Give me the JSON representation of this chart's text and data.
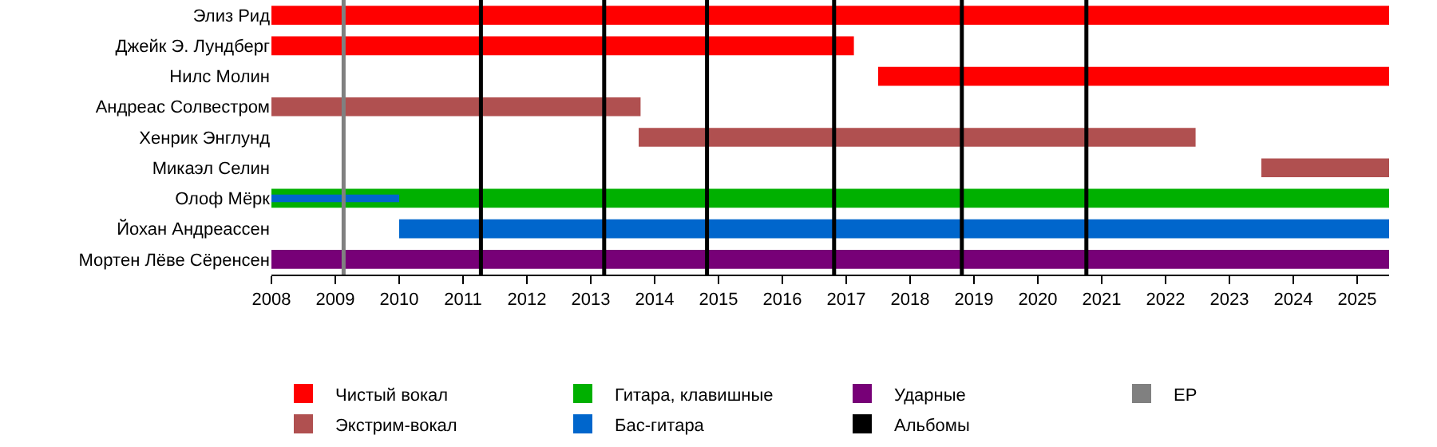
{
  "chart_data": {
    "type": "bar",
    "orientation": "horizontal",
    "categories": [
      "Элиз Рид",
      "Джейк Э. Лундберг",
      "Нилс Молин",
      "Андреас Солвестром",
      "Хенрик Энглунд",
      "Микаэл Селин",
      "Олоф Мёрк",
      "Йохан Андреассен",
      "Мортен Лёве Сёренсен"
    ],
    "series": [
      {
        "name": "Чистый вокал",
        "color": "#ff0000",
        "base": [
          2008,
          2008,
          2017.5,
          null,
          null,
          null,
          null,
          null,
          null
        ],
        "values": [
          17.5,
          9.12,
          8,
          null,
          null,
          null,
          null,
          null,
          null
        ]
      },
      {
        "name": "Экстрим-вокал",
        "color": "#b05050",
        "base": [
          null,
          null,
          null,
          2008,
          2013.75,
          2023.5,
          null,
          null,
          null
        ],
        "values": [
          null,
          null,
          null,
          5.78,
          8.72,
          2,
          null,
          null,
          null
        ]
      },
      {
        "name": "Гитара, клавишные",
        "color": "#00b000",
        "base": [
          null,
          null,
          null,
          null,
          null,
          null,
          2008,
          null,
          null
        ],
        "values": [
          null,
          null,
          null,
          null,
          null,
          null,
          17.5,
          null,
          null
        ]
      },
      {
        "name": "Бас-гитара",
        "color": "#0066cc",
        "base": [
          null,
          null,
          null,
          null,
          null,
          null,
          2008,
          2010,
          null
        ],
        "values": [
          null,
          null,
          null,
          null,
          null,
          null,
          2,
          15.5,
          null
        ]
      },
      {
        "name": "Ударные",
        "color": "#770077",
        "base": [
          null,
          null,
          null,
          null,
          null,
          null,
          null,
          null,
          2008
        ],
        "values": [
          null,
          null,
          null,
          null,
          null,
          null,
          null,
          null,
          17.5
        ]
      }
    ],
    "xlim": [
      2008,
      2025.5
    ],
    "xticks": [
      2008,
      2009,
      2010,
      2011,
      2012,
      2013,
      2014,
      2015,
      2016,
      2017,
      2018,
      2019,
      2020,
      2021,
      2022,
      2023,
      2024,
      2025
    ],
    "ref_lines": [
      {
        "axis": "x",
        "value": 2011.28,
        "label": "Альбомы",
        "color": "#000000"
      },
      {
        "axis": "x",
        "value": 2013.21,
        "label": null,
        "color": "#000000"
      },
      {
        "axis": "x",
        "value": 2014.82,
        "label": null,
        "color": "#000000"
      },
      {
        "axis": "x",
        "value": 2016.81,
        "label": null,
        "color": "#000000"
      },
      {
        "axis": "x",
        "value": 2018.81,
        "label": null,
        "color": "#000000"
      },
      {
        "axis": "x",
        "value": 2020.76,
        "label": null,
        "color": "#000000"
      },
      {
        "axis": "x",
        "value": 2009.13,
        "label": "EP",
        "color": "#808080"
      }
    ],
    "grid": false,
    "legend": "bottom"
  }
}
